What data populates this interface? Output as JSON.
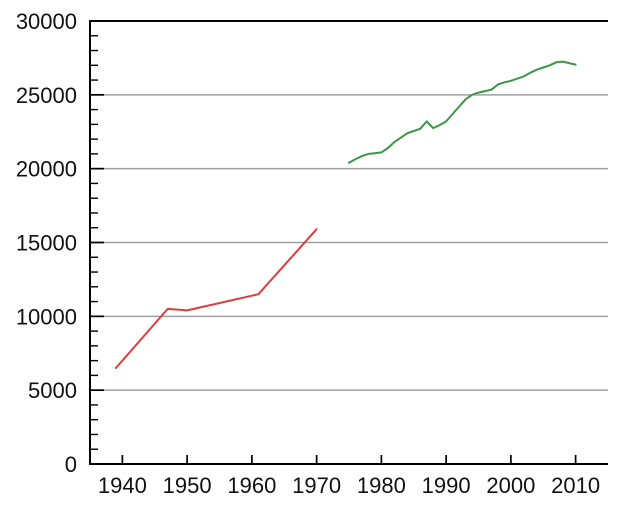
{
  "chart_data": {
    "type": "line",
    "title": "",
    "xlabel": "",
    "ylabel": "",
    "xlim": [
      1935,
      2015
    ],
    "ylim": [
      0,
      30000
    ],
    "grid": "horizontal-major-only",
    "legend": "none",
    "background_color": "#ffffff",
    "axis_color": "#000000",
    "grid_color": "#a0a0a0",
    "tick_label_color": "#111111",
    "y_minor_tick_step": 1000,
    "x_ticks": [
      {
        "v": 1940,
        "label": "1940"
      },
      {
        "v": 1950,
        "label": "1950"
      },
      {
        "v": 1960,
        "label": "1960"
      },
      {
        "v": 1970,
        "label": "1970"
      },
      {
        "v": 1980,
        "label": "1980"
      },
      {
        "v": 1990,
        "label": "1990"
      },
      {
        "v": 2000,
        "label": "2000"
      },
      {
        "v": 2010,
        "label": "2010"
      }
    ],
    "y_ticks": [
      {
        "v": 0,
        "label": "0"
      },
      {
        "v": 5000,
        "label": "5000"
      },
      {
        "v": 10000,
        "label": "10000"
      },
      {
        "v": 15000,
        "label": "15000"
      },
      {
        "v": 20000,
        "label": "20000"
      },
      {
        "v": 25000,
        "label": "25000"
      },
      {
        "v": 30000,
        "label": "30000"
      }
    ],
    "series": [
      {
        "name": "red-series-1939-1970",
        "color": "#dd3d3d",
        "points": [
          [
            1939,
            6500
          ],
          [
            1947,
            10500
          ],
          [
            1950,
            10400
          ],
          [
            1961,
            11500
          ],
          [
            1970,
            15900
          ]
        ]
      },
      {
        "name": "green-series-1975-2010",
        "color": "#3c9646",
        "points": [
          [
            1975,
            20400
          ],
          [
            1976,
            20650
          ],
          [
            1977,
            20850
          ],
          [
            1978,
            21000
          ],
          [
            1979,
            21050
          ],
          [
            1980,
            21100
          ],
          [
            1981,
            21400
          ],
          [
            1982,
            21800
          ],
          [
            1983,
            22100
          ],
          [
            1984,
            22400
          ],
          [
            1985,
            22550
          ],
          [
            1986,
            22700
          ],
          [
            1987,
            23200
          ],
          [
            1988,
            22750
          ],
          [
            1989,
            22950
          ],
          [
            1990,
            23200
          ],
          [
            1991,
            23700
          ],
          [
            1992,
            24200
          ],
          [
            1993,
            24700
          ],
          [
            1994,
            25000
          ],
          [
            1995,
            25150
          ],
          [
            1996,
            25250
          ],
          [
            1997,
            25350
          ],
          [
            1998,
            25700
          ],
          [
            1999,
            25850
          ],
          [
            2000,
            25950
          ],
          [
            2001,
            26100
          ],
          [
            2002,
            26250
          ],
          [
            2003,
            26500
          ],
          [
            2004,
            26700
          ],
          [
            2005,
            26850
          ],
          [
            2006,
            27000
          ],
          [
            2007,
            27200
          ],
          [
            2008,
            27250
          ],
          [
            2009,
            27150
          ],
          [
            2010,
            27050
          ]
        ]
      }
    ]
  }
}
